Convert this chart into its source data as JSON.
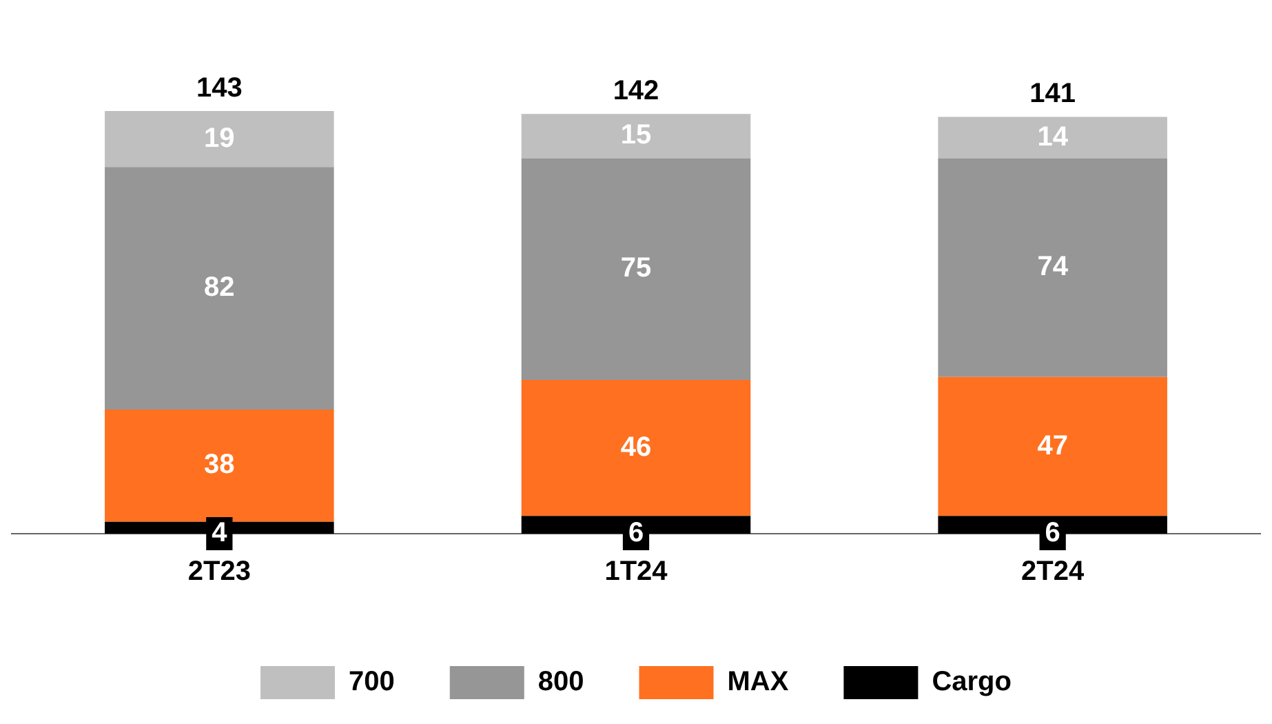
{
  "chart_data": {
    "type": "bar",
    "stacked": true,
    "categories": [
      "2T23",
      "1T24",
      "2T24"
    ],
    "series": [
      {
        "name": "Cargo",
        "color": "#000000",
        "values": [
          4,
          6,
          6
        ]
      },
      {
        "name": "MAX",
        "color": "#ff7020",
        "values": [
          38,
          46,
          47
        ]
      },
      {
        "name": "800",
        "color": "#969696",
        "values": [
          82,
          75,
          74
        ]
      },
      {
        "name": "700",
        "color": "#bfbfbf",
        "values": [
          19,
          15,
          14
        ]
      }
    ],
    "totals": [
      "143",
      "142",
      "141"
    ],
    "data_labels": true,
    "legend": "bottom",
    "grid": false,
    "tick_labels": "x"
  }
}
